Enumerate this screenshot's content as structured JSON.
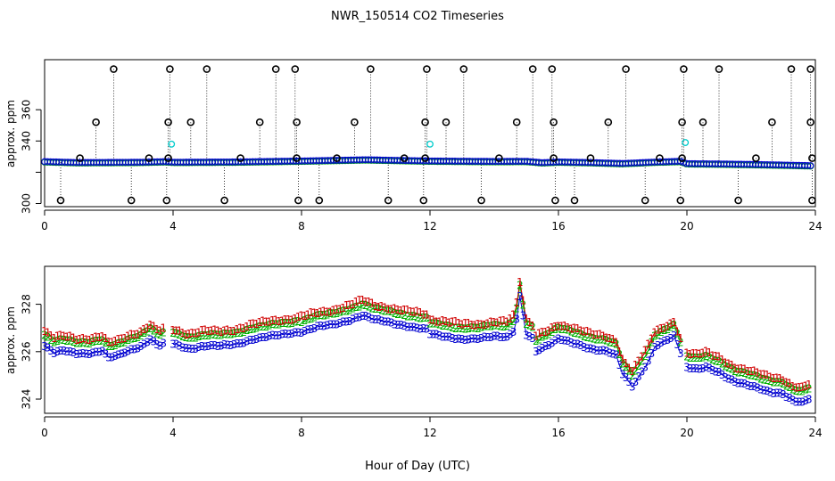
{
  "figure": {
    "title": "NWR_150514  CO2 Timeseries",
    "xlabel": "Hour of Day (UTC)"
  },
  "colors": {
    "series1": "#d00000",
    "series2": "#00b000",
    "series3": "#0000d0",
    "flag_black": "#000000",
    "cyan_points": "#00cccc",
    "axis": "#000000"
  },
  "chart_data": [
    {
      "type": "scatter",
      "panel": "top",
      "ylabel": "approx. ppm",
      "xlim": [
        0,
        24
      ],
      "ylim": [
        298,
        392
      ],
      "xticks": [
        0,
        4,
        8,
        12,
        16,
        20,
        24
      ],
      "yticks": [
        300,
        320,
        340,
        360
      ],
      "ytick_labels": [
        "300",
        "",
        "340",
        "360"
      ],
      "baseline_series": {
        "x": [
          0.0,
          1.0,
          2.0,
          3.0,
          3.8,
          4.0,
          6.0,
          8.0,
          10.0,
          12.0,
          14.0,
          15.0,
          15.5,
          16.0,
          17.0,
          18.0,
          19.0,
          19.8,
          20.0,
          21.0,
          22.0,
          23.0,
          23.9
        ],
        "values": [
          326.8,
          326.2,
          326.3,
          326.4,
          326.8,
          326.4,
          326.6,
          327.2,
          328.0,
          327.2,
          326.9,
          327.0,
          326.1,
          326.6,
          326.2,
          325.6,
          326.5,
          327.0,
          325.5,
          325.3,
          325.0,
          324.6,
          324.2
        ]
      },
      "cyan_points": [
        {
          "x": 3.95,
          "y": 338
        },
        {
          "x": 12.0,
          "y": 338
        },
        {
          "x": 19.95,
          "y": 339
        }
      ],
      "flag_points": [
        {
          "x": 2.15,
          "y": 386
        },
        {
          "x": 3.9,
          "y": 386
        },
        {
          "x": 5.05,
          "y": 386
        },
        {
          "x": 7.2,
          "y": 386
        },
        {
          "x": 7.8,
          "y": 386
        },
        {
          "x": 10.15,
          "y": 386
        },
        {
          "x": 11.9,
          "y": 386
        },
        {
          "x": 13.05,
          "y": 386
        },
        {
          "x": 15.2,
          "y": 386
        },
        {
          "x": 15.8,
          "y": 386
        },
        {
          "x": 18.1,
          "y": 386
        },
        {
          "x": 19.9,
          "y": 386
        },
        {
          "x": 21.0,
          "y": 386
        },
        {
          "x": 23.25,
          "y": 386
        },
        {
          "x": 23.85,
          "y": 386
        },
        {
          "x": 1.6,
          "y": 352
        },
        {
          "x": 3.85,
          "y": 352
        },
        {
          "x": 4.55,
          "y": 352
        },
        {
          "x": 6.7,
          "y": 352
        },
        {
          "x": 7.85,
          "y": 352
        },
        {
          "x": 9.65,
          "y": 352
        },
        {
          "x": 11.85,
          "y": 352
        },
        {
          "x": 12.5,
          "y": 352
        },
        {
          "x": 14.7,
          "y": 352
        },
        {
          "x": 15.85,
          "y": 352
        },
        {
          "x": 17.55,
          "y": 352
        },
        {
          "x": 19.85,
          "y": 352
        },
        {
          "x": 20.5,
          "y": 352
        },
        {
          "x": 22.65,
          "y": 352
        },
        {
          "x": 23.85,
          "y": 352
        },
        {
          "x": 1.1,
          "y": 329
        },
        {
          "x": 3.25,
          "y": 329
        },
        {
          "x": 3.85,
          "y": 329
        },
        {
          "x": 6.1,
          "y": 329
        },
        {
          "x": 7.85,
          "y": 329
        },
        {
          "x": 9.1,
          "y": 329
        },
        {
          "x": 11.2,
          "y": 329
        },
        {
          "x": 11.85,
          "y": 329
        },
        {
          "x": 14.15,
          "y": 329
        },
        {
          "x": 15.85,
          "y": 329
        },
        {
          "x": 17.0,
          "y": 329
        },
        {
          "x": 19.15,
          "y": 329
        },
        {
          "x": 19.85,
          "y": 329
        },
        {
          "x": 22.15,
          "y": 329
        },
        {
          "x": 23.9,
          "y": 329
        },
        {
          "x": 0.5,
          "y": 302
        },
        {
          "x": 2.7,
          "y": 302
        },
        {
          "x": 3.8,
          "y": 302
        },
        {
          "x": 5.6,
          "y": 302
        },
        {
          "x": 7.9,
          "y": 302
        },
        {
          "x": 8.55,
          "y": 302
        },
        {
          "x": 10.7,
          "y": 302
        },
        {
          "x": 11.8,
          "y": 302
        },
        {
          "x": 13.6,
          "y": 302
        },
        {
          "x": 15.9,
          "y": 302
        },
        {
          "x": 16.5,
          "y": 302
        },
        {
          "x": 18.7,
          "y": 302
        },
        {
          "x": 19.8,
          "y": 302
        },
        {
          "x": 21.6,
          "y": 302
        },
        {
          "x": 23.9,
          "y": 302
        }
      ]
    },
    {
      "type": "scatter",
      "panel": "bottom",
      "ylabel": "approx. ppm",
      "xlim": [
        0,
        24
      ],
      "ylim": [
        323.4,
        329.6
      ],
      "xticks": [
        0,
        4,
        8,
        12,
        16,
        20,
        24
      ],
      "yticks": [
        324,
        326,
        328
      ],
      "series": [
        {
          "name": "1",
          "marker": "1",
          "offset": 0.35
        },
        {
          "name": "2",
          "marker": "2",
          "offset": 0.18
        },
        {
          "name": "3",
          "marker": "3",
          "offset": -0.28
        }
      ],
      "segments": [
        {
          "x": [
            0.0,
            0.3,
            0.6,
            1.0,
            1.4,
            1.8,
            2.0,
            2.3,
            2.6,
            3.0,
            3.3,
            3.55,
            3.7
          ],
          "values": [
            326.5,
            326.2,
            326.3,
            326.2,
            326.2,
            326.3,
            326.0,
            326.1,
            326.3,
            326.5,
            326.8,
            326.5,
            326.6
          ]
        },
        {
          "x": [
            4.0,
            4.5,
            5.0,
            5.5,
            6.0,
            6.5,
            7.0,
            7.5,
            7.9
          ],
          "values": [
            326.6,
            326.4,
            326.5,
            326.5,
            326.6,
            326.8,
            326.9,
            327.0,
            327.1
          ]
        },
        {
          "x": [
            8.0,
            8.5,
            9.0,
            9.5,
            9.9,
            10.3,
            10.7,
            11.1,
            11.5,
            11.9
          ],
          "values": [
            327.1,
            327.3,
            327.4,
            327.6,
            327.8,
            327.6,
            327.5,
            327.4,
            327.3,
            327.2
          ]
        },
        {
          "x": [
            12.0,
            12.5,
            13.0,
            13.5,
            14.0,
            14.4,
            14.65,
            14.8,
            15.0,
            15.2
          ],
          "values": [
            327.0,
            326.9,
            326.8,
            326.8,
            326.9,
            326.9,
            327.2,
            328.6,
            327.0,
            326.8
          ]
        },
        {
          "x": [
            15.3,
            15.6,
            16.0,
            16.5,
            17.0,
            17.5,
            17.8,
            18.0,
            18.3,
            18.5,
            18.8,
            19.0,
            19.3,
            19.6,
            19.8
          ],
          "values": [
            326.3,
            326.5,
            326.8,
            326.6,
            326.4,
            326.3,
            326.1,
            325.3,
            324.8,
            325.2,
            325.9,
            326.5,
            326.7,
            326.9,
            326.2
          ]
        },
        {
          "x": [
            20.0,
            20.3,
            20.6,
            21.0,
            21.5,
            22.0,
            22.5,
            23.0,
            23.3,
            23.6,
            23.85
          ],
          "values": [
            325.6,
            325.5,
            325.6,
            325.4,
            325.0,
            324.8,
            324.6,
            324.5,
            324.2,
            324.1,
            324.3
          ]
        }
      ]
    }
  ]
}
